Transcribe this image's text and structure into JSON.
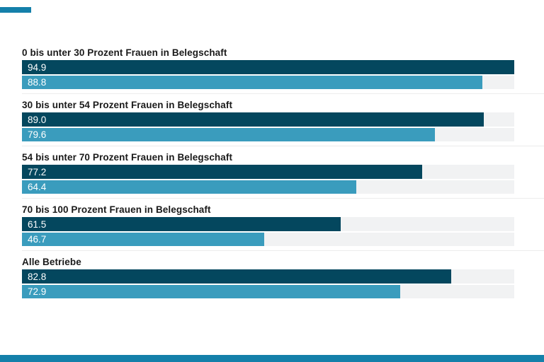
{
  "accent_color": "#1480aa",
  "chart_data": {
    "type": "bar",
    "orientation": "horizontal",
    "xlim": [
      0,
      94.9
    ],
    "grid": false,
    "legend": "none",
    "axes_visible": false,
    "value_labels_position": "inside-left",
    "track_color": "#f1f2f3",
    "divider_color": "#ececec",
    "series_meta": [
      {
        "name": "series-dark",
        "color": "#04475e"
      },
      {
        "name": "series-light",
        "color": "#3a9cbd"
      }
    ],
    "groups": [
      {
        "category": "0 bis unter 30 Prozent Frauen in Belegschaft",
        "dark": "94.9",
        "light": "88.8"
      },
      {
        "category": "30 bis unter 54 Prozent Frauen in Belegschaft",
        "dark": "89.0",
        "light": "79.6"
      },
      {
        "category": "54 bis unter 70 Prozent Frauen in Belegschaft",
        "dark": "77.2",
        "light": "64.4"
      },
      {
        "category": "70 bis 100 Prozent Frauen in Belegschaft",
        "dark": "61.5",
        "light": "46.7"
      },
      {
        "category": "Alle Betriebe",
        "dark": "82.8",
        "light": "72.9"
      }
    ]
  }
}
